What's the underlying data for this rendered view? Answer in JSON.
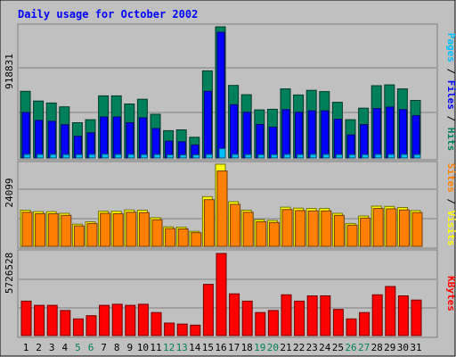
{
  "chart_data": {
    "type": "bar",
    "title": "Daily usage for October 2002",
    "categories": [
      "1",
      "2",
      "3",
      "4",
      "5",
      "6",
      "7",
      "8",
      "9",
      "10",
      "11",
      "12",
      "13",
      "14",
      "15",
      "16",
      "17",
      "18",
      "19",
      "20",
      "21",
      "22",
      "23",
      "24",
      "25",
      "26",
      "27",
      "28",
      "29",
      "30",
      "31"
    ],
    "weekend_days": [
      "5",
      "6",
      "12",
      "13",
      "19",
      "20",
      "26",
      "27"
    ],
    "panels": [
      {
        "key": "top",
        "ylabel_parts": [
          "Pages",
          "Files",
          "Hits"
        ],
        "ymax_label": "918831",
        "ymax": 918831,
        "series": [
          {
            "name": "Hits",
            "color": "#00805a",
            "values": [
              467000,
              399000,
              385000,
              358000,
              247000,
              268000,
              435000,
              435000,
              378000,
              411000,
              306000,
              191000,
              197000,
              145000,
              610000,
              918831,
              508000,
              443000,
              337000,
              341000,
              484000,
              441000,
              474000,
              465000,
              390000,
              268000,
              349000,
              506000,
              512000,
              484000,
              403000
            ]
          },
          {
            "name": "Files",
            "color": "#0000ff",
            "values": [
              319000,
              263000,
              257000,
              233000,
              152000,
              176000,
              287000,
              287000,
              247000,
              281000,
              206000,
              118000,
              113000,
              91000,
              467000,
              881000,
              373000,
              320000,
              235000,
              216000,
              339000,
              320000,
              330000,
              330000,
              271000,
              161000,
              234000,
              346000,
              356000,
              339000,
              296000
            ]
          },
          {
            "name": "Pages",
            "color": "#00bfff",
            "values": [
              25000,
              25000,
              25000,
              24000,
              24000,
              25000,
              26000,
              25000,
              25000,
              24000,
              24000,
              22000,
              21000,
              22000,
              25000,
              65000,
              25000,
              24000,
              23000,
              23000,
              25000,
              24000,
              25000,
              25000,
              24000,
              23000,
              23000,
              25000,
              25000,
              25000,
              24000
            ]
          }
        ]
      },
      {
        "key": "mid",
        "ylabel_parts": [
          "Sites",
          "Visits"
        ],
        "ymax_label": "24099",
        "ymax": 24099,
        "series": [
          {
            "name": "Visits",
            "color": "#ffff00",
            "values": [
              10600,
              10200,
              10200,
              9700,
              6500,
              7200,
              10300,
              10300,
              10700,
              10600,
              8400,
              5700,
              5600,
              4400,
              14600,
              24099,
              13100,
              10600,
              7800,
              7600,
              11500,
              11200,
              11100,
              11100,
              9700,
              6700,
              8900,
              11800,
              11700,
              11400,
              10500
            ]
          },
          {
            "name": "Sites",
            "color": "#ff8000",
            "values": [
              10000,
              9600,
              9600,
              9100,
              6000,
              6700,
              9700,
              9600,
              10000,
              9900,
              7800,
              5200,
              5100,
              4000,
              13700,
              22100,
              12300,
              10000,
              7200,
              7000,
              10800,
              10500,
              10400,
              10400,
              9100,
              6200,
              8300,
              11100,
              11000,
              10700,
              9900
            ]
          }
        ]
      },
      {
        "key": "bot",
        "ylabel_parts": [
          "KBytes"
        ],
        "ymax_label": "5726528",
        "ymax": 5726528,
        "series": [
          {
            "name": "KBytes",
            "color": "#ff0000",
            "values": [
              2405000,
              2113000,
              2113000,
              1749000,
              1166000,
              1385000,
              2113000,
              2186000,
              2113000,
              2186000,
              1603000,
              874000,
              802000,
              729000,
              3571000,
              5726528,
              2915000,
              2405000,
              1603000,
              1749000,
              2842000,
              2405000,
              2769000,
              2769000,
              1822000,
              1166000,
              1603000,
              2842000,
              3425000,
              2769000,
              2478000
            ]
          }
        ]
      }
    ]
  }
}
